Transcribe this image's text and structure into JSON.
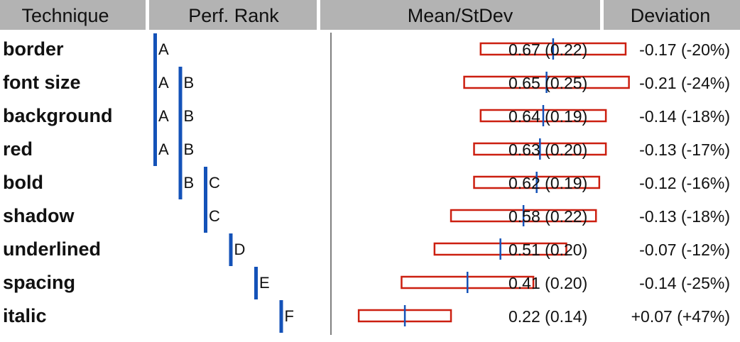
{
  "colors": {
    "header_bg": "#b3b3b3",
    "rank_bar": "#1452b8",
    "box_stroke": "#cc1f10",
    "mean_line": "#1452b8",
    "divider": "#808080"
  },
  "headers": {
    "technique": "Technique",
    "rank": "Perf. Rank",
    "mean": "Mean/StDev",
    "deviation": "Deviation"
  },
  "chart_data": {
    "type": "table",
    "x_range": [
      0.0,
      1.0
    ],
    "rank_groups": [
      "A",
      "B",
      "C",
      "D",
      "E",
      "F"
    ],
    "rows": [
      {
        "technique": "border",
        "mean": 0.67,
        "sd": 0.22,
        "mean_sd_text": "0.67 (0.22)",
        "deviation_text": "-0.17 (-20%)",
        "groups": [
          "A"
        ]
      },
      {
        "technique": "font size",
        "mean": 0.65,
        "sd": 0.25,
        "mean_sd_text": "0.65 (0.25)",
        "deviation_text": "-0.21 (-24%)",
        "groups": [
          "A",
          "B"
        ]
      },
      {
        "technique": "background",
        "mean": 0.64,
        "sd": 0.19,
        "mean_sd_text": "0.64 (0.19)",
        "deviation_text": "-0.14 (-18%)",
        "groups": [
          "A",
          "B"
        ]
      },
      {
        "technique": "red",
        "mean": 0.63,
        "sd": 0.2,
        "mean_sd_text": "0.63 (0.20)",
        "deviation_text": "-0.13 (-17%)",
        "groups": [
          "A",
          "B"
        ]
      },
      {
        "technique": "bold",
        "mean": 0.62,
        "sd": 0.19,
        "mean_sd_text": "0.62 (0.19)",
        "deviation_text": "-0.12 (-16%)",
        "groups": [
          "B",
          "C"
        ]
      },
      {
        "technique": "shadow",
        "mean": 0.58,
        "sd": 0.22,
        "mean_sd_text": "0.58 (0.22)",
        "deviation_text": "-0.13 (-18%)",
        "groups": [
          "C"
        ]
      },
      {
        "technique": "underlined",
        "mean": 0.51,
        "sd": 0.2,
        "mean_sd_text": "0.51 (0.20)",
        "deviation_text": "-0.07 (-12%)",
        "groups": [
          "D"
        ]
      },
      {
        "technique": "spacing",
        "mean": 0.41,
        "sd": 0.2,
        "mean_sd_text": "0.41 (0.20)",
        "deviation_text": "-0.14 (-25%)",
        "groups": [
          "E"
        ]
      },
      {
        "technique": "italic",
        "mean": 0.22,
        "sd": 0.14,
        "mean_sd_text": "0.22 (0.14)",
        "deviation_text": "+0.07 (+47%)",
        "groups": [
          "F"
        ]
      }
    ]
  }
}
